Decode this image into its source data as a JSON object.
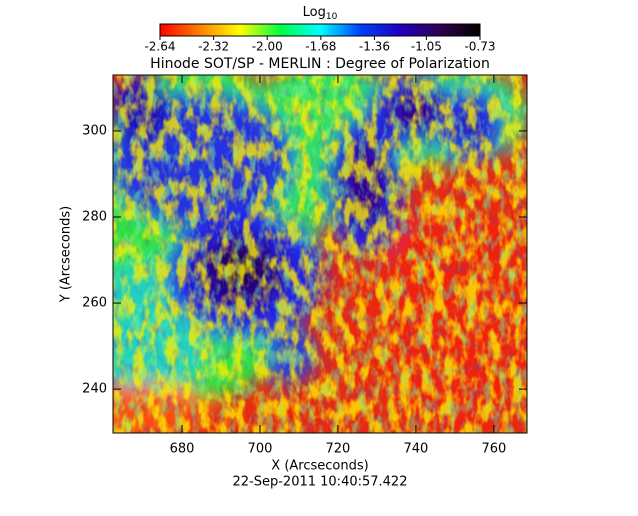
{
  "chart_data": {
    "type": "heatmap",
    "title": "Hinode SOT/SP - MERLIN : Degree of Polarization",
    "xlabel": "X (Arcseconds)",
    "ylabel": "Y (Arcseconds)",
    "footer": "22-Sep-2011 10:40:57.422",
    "xlim": [
      662.3,
      768.5
    ],
    "ylim": [
      229.8,
      313
    ],
    "xticks": [
      680,
      700,
      720,
      740,
      760
    ],
    "yticks": [
      240,
      260,
      280,
      300
    ],
    "colorbar": {
      "label": "Log",
      "label_sub": "10",
      "lim": [
        -2.64,
        -0.73
      ],
      "ticks": [
        -2.64,
        -2.32,
        {
          "value": -2.0,
          "label": "-2.00"
        },
        -1.68,
        -1.36,
        -1.05,
        -0.73
      ],
      "colors": [
        "#ff0000",
        "#ff8000",
        "#ffff00",
        "#00ff40",
        "#00ffff",
        "#0040ff",
        "#2000c0",
        "#300050",
        "#000000"
      ]
    }
  }
}
